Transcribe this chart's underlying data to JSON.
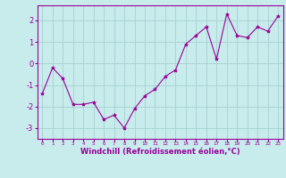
{
  "x": [
    0,
    1,
    2,
    3,
    4,
    5,
    6,
    7,
    8,
    9,
    10,
    11,
    12,
    13,
    14,
    15,
    16,
    17,
    18,
    19,
    20,
    21,
    22,
    23
  ],
  "y": [
    -1.4,
    -0.2,
    -0.7,
    -1.9,
    -1.9,
    -1.8,
    -2.6,
    -2.4,
    -3.0,
    -2.1,
    -1.5,
    -1.2,
    -0.6,
    -0.3,
    0.9,
    1.3,
    1.7,
    0.2,
    2.3,
    1.3,
    1.2,
    1.7,
    1.5,
    2.2
  ],
  "line_color": "#990099",
  "marker": "*",
  "marker_size": 3,
  "bg_color": "#c8ecec",
  "grid_color": "#aad4d4",
  "xlabel": "Windchill (Refroidissement éolien,°C)",
  "xlabel_color": "#990099",
  "tick_color": "#990099",
  "ylim": [
    -3.5,
    2.7
  ],
  "xlim": [
    -0.5,
    23.5
  ],
  "yticks": [
    -3,
    -2,
    -1,
    0,
    1,
    2
  ],
  "xticks": [
    0,
    1,
    2,
    3,
    4,
    5,
    6,
    7,
    8,
    9,
    10,
    11,
    12,
    13,
    14,
    15,
    16,
    17,
    18,
    19,
    20,
    21,
    22,
    23
  ]
}
